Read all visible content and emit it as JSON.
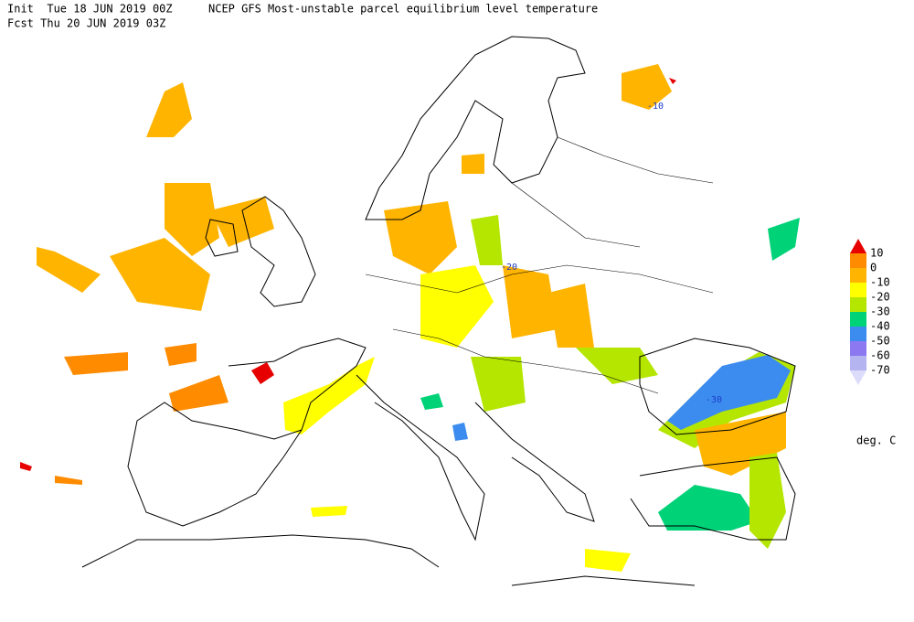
{
  "header": {
    "init": "Init  Tue 18 JUN 2019 00Z",
    "title": "NCEP GFS Most-unstable parcel equilibrium level temperature",
    "forecast": "Fcst Thu 20 JUN 2019 03Z"
  },
  "legend": {
    "labels": [
      "10",
      "0",
      "-10",
      "-20",
      "-30",
      "-40",
      "-50",
      "-60",
      "-70"
    ],
    "colors": [
      "#e60000",
      "#ff8c00",
      "#ffb400",
      "#ffff00",
      "#b4e600",
      "#00d278",
      "#3c8cf0",
      "#8c78f0",
      "#b4b4f0",
      "#dcdcfa"
    ],
    "units": "deg. C"
  },
  "contour_labels": [
    "-10",
    "-20",
    "-30"
  ]
}
